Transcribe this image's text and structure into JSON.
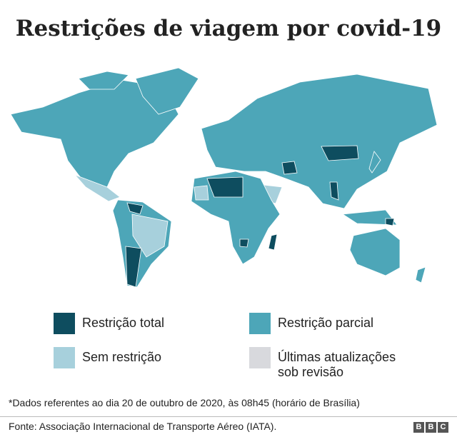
{
  "header": {
    "title": "Restrições de viagem por covid-19"
  },
  "legend": {
    "items": [
      {
        "label": "Restrição total",
        "color": "#0e4d5f"
      },
      {
        "label": "Restrição parcial",
        "color": "#4da6b8"
      },
      {
        "label": "Sem restrição",
        "color": "#a7d0dc"
      },
      {
        "label": [
          "Últimas atualizações",
          "sob revisão"
        ],
        "color": "#d8d9dd"
      }
    ]
  },
  "footnote": "*Dados referentes ao dia 20 de outubro de 2020, às 08h45 (horário de Brasília)",
  "source": "Fonte: Associação Internacional de Transporte Aéreo (IATA).",
  "logo": [
    "B",
    "B",
    "C"
  ]
}
